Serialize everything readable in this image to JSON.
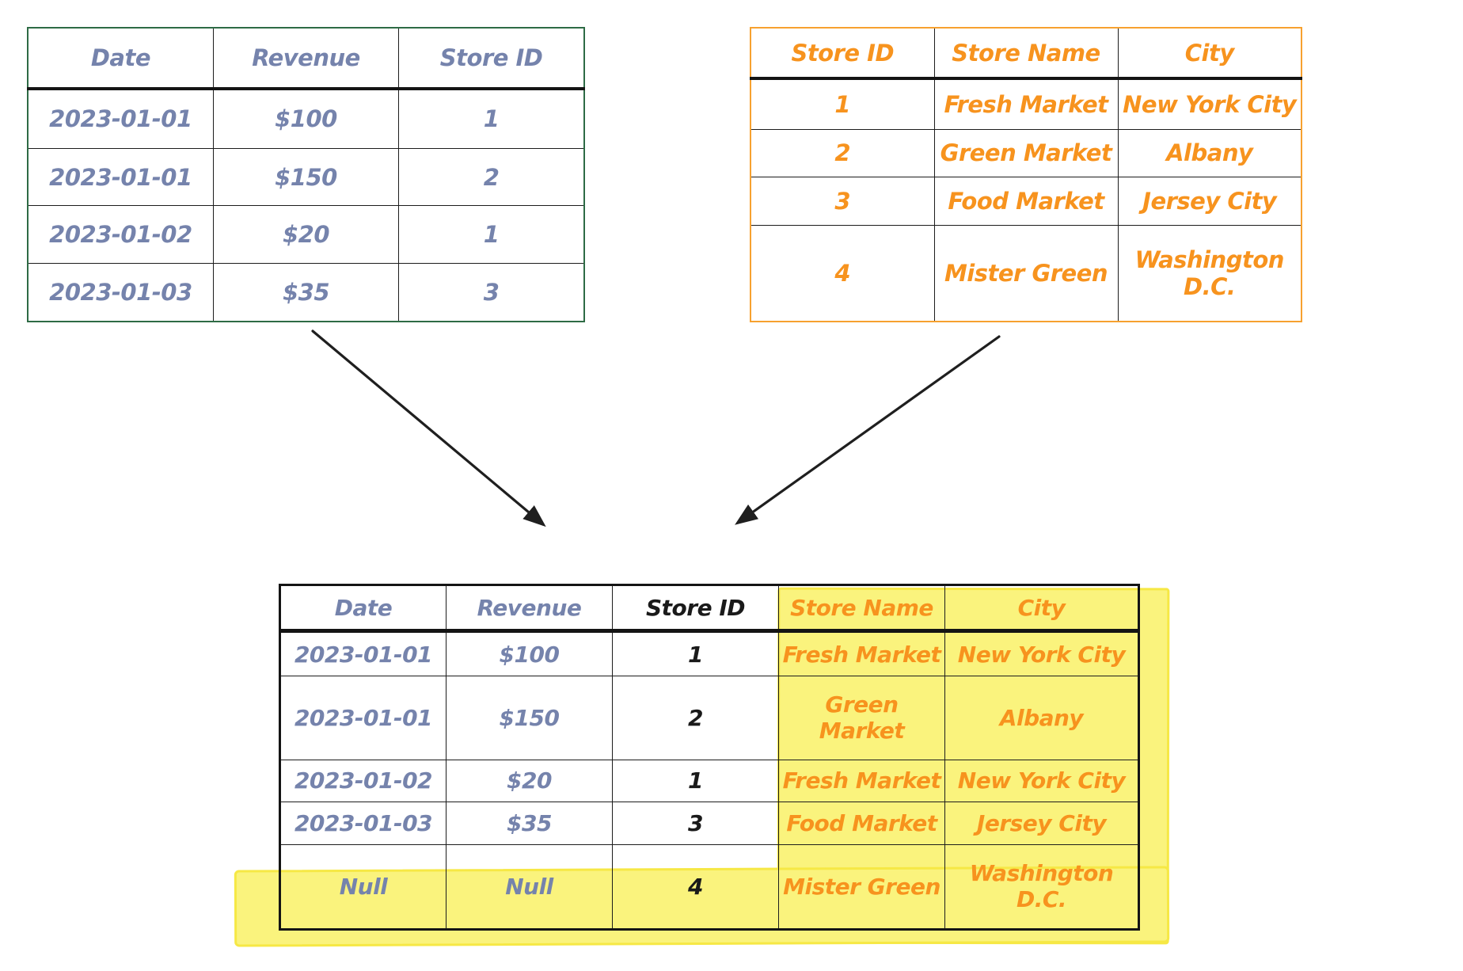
{
  "colors": {
    "revenue_text": "#7583AC",
    "revenue_border": "#2E6B45",
    "stores_text": "#F7931E",
    "stores_border": "#F7A12F",
    "result_key_text": "#1A1A1A",
    "grid_line": "#1C1C1C",
    "highlight": "#FAF37D",
    "highlight_edge": "#F6E845",
    "arrow": "#1F1F1F"
  },
  "tables": {
    "revenue": {
      "title": "revenue-table",
      "columns": [
        "Date",
        "Revenue",
        "Store ID"
      ],
      "column_styles": [
        "blue",
        "blue",
        "blue"
      ],
      "rows": [
        [
          "2023-01-01",
          "$100",
          "1"
        ],
        [
          "2023-01-01",
          "$150",
          "2"
        ],
        [
          "2023-01-02",
          "$20",
          "1"
        ],
        [
          "2023-01-03",
          "$35",
          "3"
        ]
      ]
    },
    "stores": {
      "title": "stores-table",
      "columns": [
        "Store ID",
        "Store Name",
        "City"
      ],
      "column_styles": [
        "orange",
        "orange",
        "orange"
      ],
      "rows": [
        [
          "1",
          "Fresh Market",
          "New York City"
        ],
        [
          "2",
          "Green Market",
          "Albany"
        ],
        [
          "3",
          "Food Market",
          "Jersey City"
        ],
        [
          "4",
          "Mister Green",
          "Washington D.C."
        ]
      ]
    },
    "result": {
      "title": "joined-result-table",
      "columns": [
        "Date",
        "Revenue",
        "Store ID",
        "Store Name",
        "City"
      ],
      "column_styles": [
        "blue",
        "blue",
        "key",
        "orange",
        "orange"
      ],
      "rows": [
        [
          "2023-01-01",
          "$100",
          "1",
          "Fresh Market",
          "New York City"
        ],
        [
          "2023-01-01",
          "$150",
          "2",
          "Green Market",
          "Albany"
        ],
        [
          "2023-01-02",
          "$20",
          "1",
          "Fresh Market",
          "New York City"
        ],
        [
          "2023-01-03",
          "$35",
          "3",
          "Food Market",
          "Jersey City"
        ],
        [
          "Null",
          "Null",
          "4",
          "Mister Green",
          "Washington D.C."
        ]
      ]
    }
  }
}
